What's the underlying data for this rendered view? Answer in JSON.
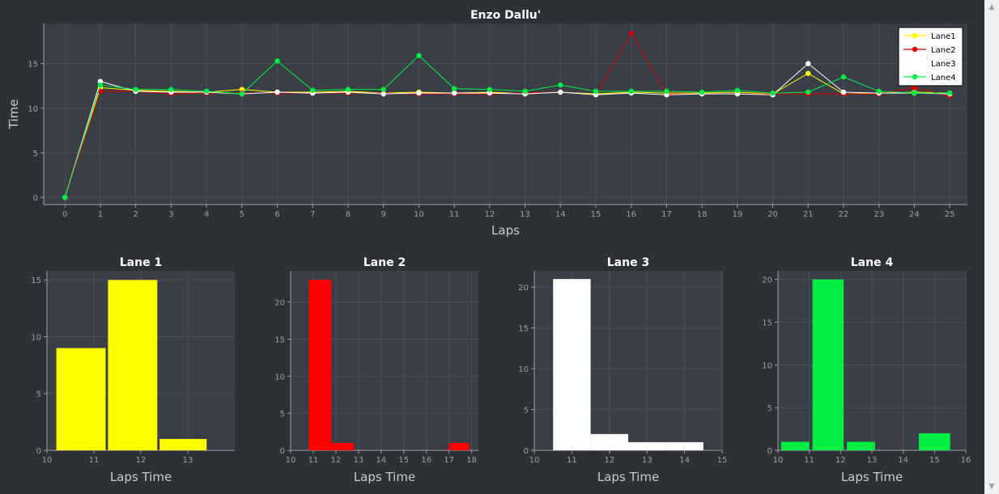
{
  "colors": {
    "background": "#2d3035",
    "plot_bg": "#393e47",
    "grid": "#4a505b",
    "axis": "#9aa0a8",
    "tick_text": "#9aa0a8",
    "title_text": "#ffffff",
    "label_text": "#c8ccd2"
  },
  "chart_data": [
    {
      "type": "line",
      "title": "Enzo Dallu'",
      "xlabel": "Laps",
      "ylabel": "Time",
      "xlim": [
        -0.6,
        25.5
      ],
      "ylim": [
        -0.8,
        19.5
      ],
      "xticks": [
        0,
        1,
        2,
        3,
        4,
        5,
        6,
        7,
        8,
        9,
        10,
        11,
        12,
        13,
        14,
        15,
        16,
        17,
        18,
        19,
        20,
        21,
        22,
        23,
        24,
        25
      ],
      "yticks": [
        0,
        5,
        10,
        15
      ],
      "grid": true,
      "legend_position": "top-right",
      "x": [
        0,
        1,
        2,
        3,
        4,
        5,
        6,
        7,
        8,
        9,
        10,
        11,
        12,
        13,
        14,
        15,
        16,
        17,
        18,
        19,
        20,
        21,
        22,
        23,
        24,
        25
      ],
      "series": [
        {
          "name": "Lane1",
          "color": "#ffff00",
          "values": [
            0,
            12.3,
            12.0,
            11.9,
            11.8,
            12.1,
            11.8,
            11.8,
            11.9,
            11.7,
            11.8,
            11.7,
            11.8,
            11.6,
            11.8,
            11.6,
            11.8,
            11.7,
            11.7,
            11.8,
            11.6,
            13.9,
            11.6,
            11.7,
            11.8,
            11.7
          ]
        },
        {
          "name": "Lane2",
          "color": "#dd0000",
          "values": [
            0,
            11.9,
            11.9,
            11.6,
            11.7,
            11.7,
            11.7,
            11.7,
            11.7,
            11.7,
            11.6,
            11.6,
            11.6,
            11.7,
            11.8,
            11.5,
            18.4,
            11.6,
            11.6,
            11.6,
            11.6,
            11.6,
            11.6,
            11.6,
            12.3,
            11.4
          ]
        },
        {
          "name": "Lane3",
          "color": "#ffffff",
          "values": [
            0,
            13.0,
            11.9,
            11.8,
            11.8,
            11.6,
            11.8,
            11.7,
            11.8,
            11.6,
            11.7,
            11.7,
            11.7,
            11.6,
            11.8,
            11.5,
            11.7,
            11.5,
            11.6,
            11.6,
            11.5,
            15.0,
            11.8,
            11.7,
            11.7,
            11.6
          ]
        },
        {
          "name": "Lane4",
          "color": "#00ee44",
          "values": [
            0,
            12.6,
            12.1,
            12.1,
            11.9,
            11.6,
            15.3,
            12.0,
            12.1,
            12.1,
            15.9,
            12.2,
            12.1,
            11.9,
            12.6,
            11.9,
            11.9,
            11.9,
            11.8,
            12.0,
            11.7,
            11.8,
            13.5,
            11.9,
            11.7,
            11.7
          ]
        }
      ]
    },
    {
      "type": "bar",
      "title": "Lane 1",
      "xlabel": "Laps Time",
      "ylabel": "",
      "color": "#ffff00",
      "xlim": [
        10,
        14
      ],
      "ylim": [
        0,
        15.8
      ],
      "xticks": [
        10,
        11,
        12,
        13
      ],
      "yticks": [
        0,
        5,
        10,
        15
      ],
      "bins": [
        [
          10.2,
          11.25
        ],
        [
          11.3,
          12.35
        ],
        [
          12.4,
          13.4
        ]
      ],
      "values": [
        9,
        15,
        1
      ]
    },
    {
      "type": "bar",
      "title": "Lane 2",
      "xlabel": "Laps Time",
      "ylabel": "",
      "color": "#ff0000",
      "xlim": [
        10,
        18.3
      ],
      "ylim": [
        0,
        24.2
      ],
      "xticks": [
        10,
        11,
        12,
        13,
        14,
        15,
        16,
        17,
        18
      ],
      "yticks": [
        0,
        5,
        10,
        15,
        20
      ],
      "bins": [
        [
          10.8,
          11.8
        ],
        [
          11.8,
          12.8
        ],
        [
          17,
          17.9
        ]
      ],
      "values": [
        23,
        1,
        1
      ]
    },
    {
      "type": "bar",
      "title": "Lane 3",
      "xlabel": "Laps Time",
      "ylabel": "",
      "color": "#ffffff",
      "xlim": [
        10,
        15
      ],
      "ylim": [
        0,
        22
      ],
      "xticks": [
        10,
        11,
        12,
        13,
        14,
        15
      ],
      "yticks": [
        0,
        5,
        10,
        15,
        20
      ],
      "bins": [
        [
          10.5,
          11.5
        ],
        [
          11.5,
          12.5
        ],
        [
          12.5,
          13.5
        ],
        [
          13.5,
          14.5
        ]
      ],
      "values": [
        21,
        2,
        1,
        1
      ]
    },
    {
      "type": "bar",
      "title": "Lane 4",
      "xlabel": "Laps Time",
      "ylabel": "",
      "color": "#00ee44",
      "xlim": [
        10,
        16
      ],
      "ylim": [
        0,
        21
      ],
      "xticks": [
        10,
        11,
        12,
        13,
        14,
        15,
        16
      ],
      "yticks": [
        0,
        5,
        10,
        15,
        20
      ],
      "bins": [
        [
          10.1,
          11.0
        ],
        [
          11.1,
          12.1
        ],
        [
          12.2,
          13.1
        ],
        [
          14.5,
          15.5
        ]
      ],
      "values": [
        1,
        20,
        1,
        2
      ]
    }
  ]
}
